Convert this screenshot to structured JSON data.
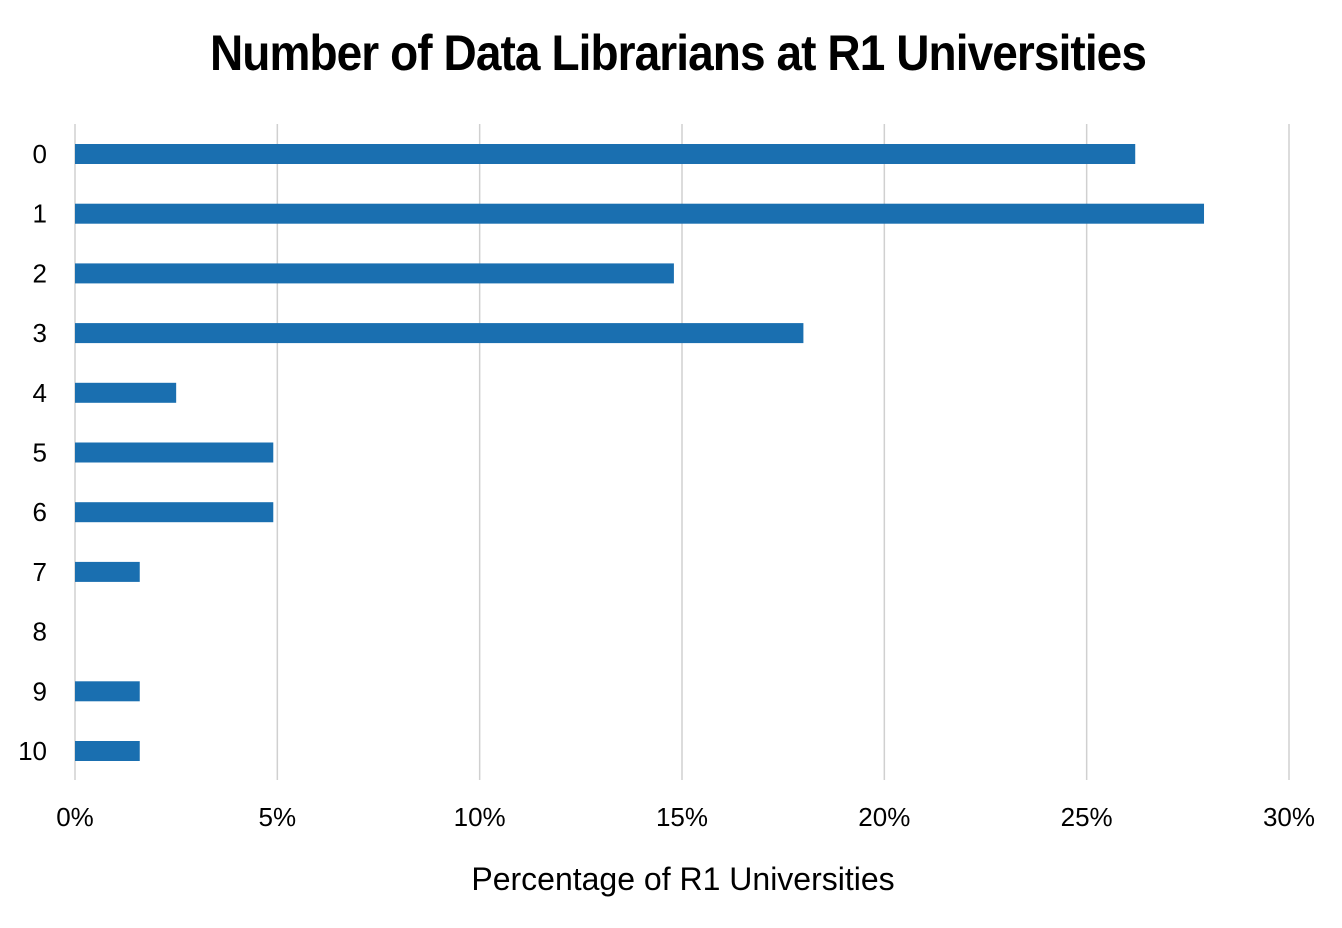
{
  "chart_data": {
    "type": "bar",
    "orientation": "horizontal",
    "title": "Number of Data Librarians at R1 Universities",
    "xlabel": "Percentage of R1 Universities",
    "ylabel": "",
    "categories": [
      "0",
      "1",
      "2",
      "3",
      "4",
      "5",
      "6",
      "7",
      "8",
      "9",
      "10"
    ],
    "values": [
      26.2,
      27.9,
      14.8,
      18.0,
      2.5,
      4.9,
      4.9,
      1.6,
      0,
      1.6,
      1.6
    ],
    "xlim": [
      0,
      30
    ],
    "xticks": [
      0,
      5,
      10,
      15,
      20,
      25,
      30
    ],
    "xtick_labels": [
      "0%",
      "5%",
      "10%",
      "15%",
      "20%",
      "25%",
      "30%"
    ],
    "grid": "vertical",
    "legend": "none",
    "bar_color": "#1a6fb0",
    "grid_color": "#d0d0d0"
  }
}
